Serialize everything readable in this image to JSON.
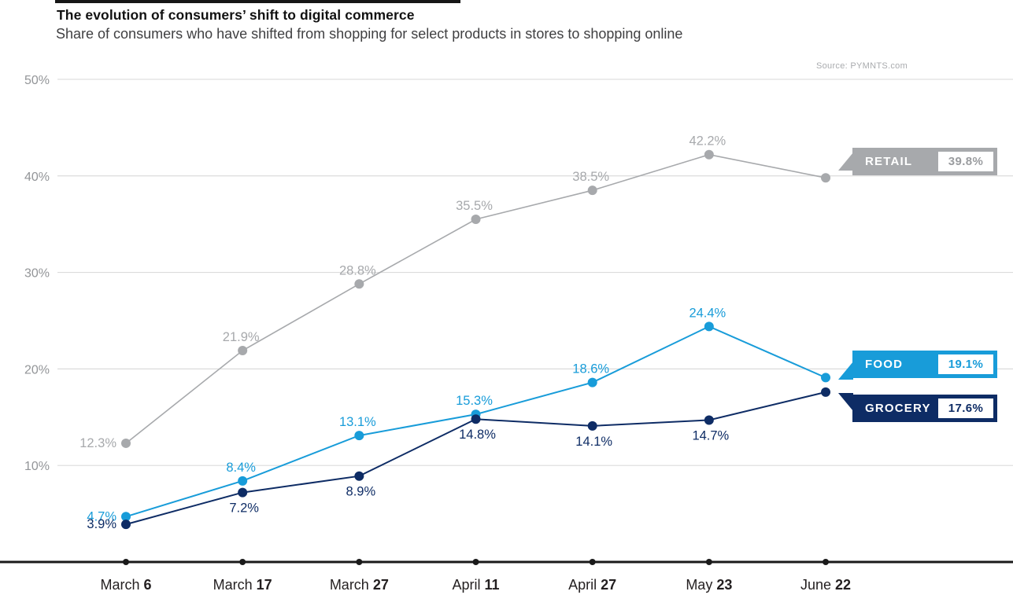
{
  "header": {
    "title": "The evolution of consumers’ shift to digital commerce",
    "subtitle": "Share of consumers who have shifted from shopping for select products in stores to shopping online"
  },
  "source_note": "Source: PYMNTS.com",
  "colors": {
    "retail": "#a7a9ac",
    "food": "#189cd9",
    "grocery": "#0e2c65",
    "grid": "#dcdcdc",
    "axis": "#1a1a1a",
    "y_tick_label": "#939598",
    "x_tick_label": "#231f20",
    "retail_badge_value": "#9a9c9f"
  },
  "chart_data": {
    "type": "line",
    "title": "The evolution of consumers’ shift to digital commerce",
    "subtitle": "Share of consumers who have shifted from shopping for select products in stores to shopping online",
    "categories": [
      "March 6",
      "March 17",
      "March 27",
      "April 11",
      "April 27",
      "May 23",
      "June 22"
    ],
    "series": [
      {
        "name": "RETAIL",
        "color": "#a7a9ac",
        "value_label_color": "#a7a9ac",
        "badge_value_color": "#9a9c9f",
        "label_side": "above",
        "final_label": "39.8%",
        "values": [
          12.3,
          21.9,
          28.8,
          35.5,
          38.5,
          42.2,
          39.8
        ]
      },
      {
        "name": "FOOD",
        "color": "#189cd9",
        "value_label_color": "#189cd9",
        "badge_value_color": "#189cd9",
        "label_side": "above",
        "final_label": "19.1%",
        "values": [
          4.7,
          8.4,
          13.1,
          15.3,
          18.6,
          24.4,
          19.1
        ]
      },
      {
        "name": "GROCERY",
        "color": "#0e2c65",
        "value_label_color": "#0e2c65",
        "badge_value_color": "#0e2c65",
        "label_side": "below",
        "final_label": "17.6%",
        "values": [
          3.9,
          7.2,
          8.9,
          14.8,
          14.1,
          14.7,
          17.6
        ]
      }
    ],
    "y_axis": {
      "min": 0,
      "max": 50,
      "tick_step": 10,
      "tick_labels": [
        "10%",
        "20%",
        "30%",
        "40%",
        "50%"
      ]
    },
    "xlabel": "",
    "ylabel": "",
    "grid": true,
    "legend_position": "right-badges"
  }
}
